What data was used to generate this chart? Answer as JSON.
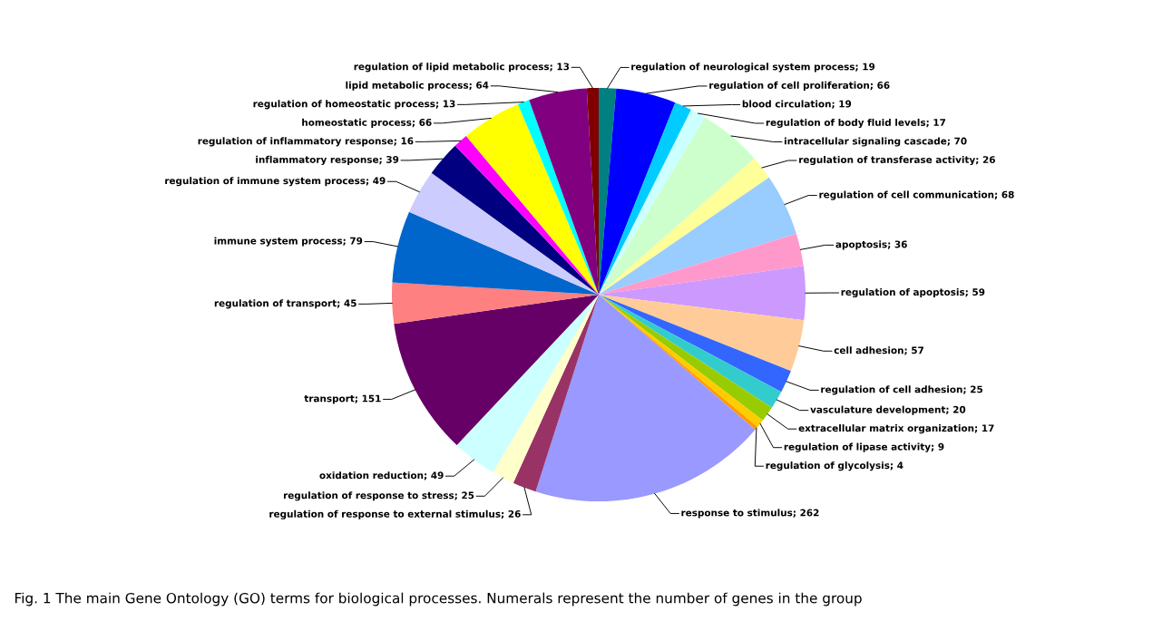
{
  "chart_data": {
    "type": "pie",
    "categories": [
      "regulation of neurological system process; 19",
      "regulation of cell proliferation; 66",
      "blood circulation; 19",
      "regulation of body fluid levels; 17",
      "intracellular signaling cascade; 70",
      "regulation of transferase activity; 26",
      "regulation of cell communication; 68",
      "apoptosis; 36",
      "regulation of apoptosis; 59",
      "cell adhesion; 57",
      "regulation of cell adhesion; 25",
      "vasculature development; 20",
      "extracellular matrix organization; 17",
      "regulation of lipase activity; 9",
      "regulation of glycolysis; 4",
      "response to stimulus; 262",
      "regulation of response to external stimulus; 26",
      "regulation of response to stress; 25",
      "oxidation reduction; 49",
      "transport; 151",
      "regulation of transport; 45",
      "immune system process; 79",
      "regulation of immune system process; 49",
      "inflammatory response; 39",
      "regulation of inflammatory response; 16",
      "homeostatic process; 66",
      "regulation of homeostatic process; 13",
      "lipid metabolic process; 64",
      "regulation of lipid metabolic process; 13"
    ],
    "values": [
      19,
      66,
      19,
      17,
      70,
      26,
      68,
      36,
      59,
      57,
      25,
      20,
      17,
      9,
      4,
      262,
      26,
      25,
      49,
      151,
      45,
      79,
      49,
      39,
      16,
      66,
      13,
      64,
      13
    ],
    "colors": [
      "#008080",
      "#0000ff",
      "#00ccff",
      "#ccffff",
      "#ccffcc",
      "#ffff99",
      "#99ccff",
      "#ff99cc",
      "#cc99ff",
      "#ffcc99",
      "#3366ff",
      "#33cccc",
      "#99cc00",
      "#ffcc00",
      "#ff9900",
      "#9999ff",
      "#993366",
      "#ffffcc",
      "#ccffff",
      "#660066",
      "#ff8080",
      "#0066cc",
      "#ccccff",
      "#000080",
      "#ff00ff",
      "#ffff00",
      "#00ffff",
      "#800080",
      "#800000"
    ],
    "annotations": [
      "Fig. 1 The main Gene Ontology (GO) terms for biological processes. Numerals represent the number of genes in the group"
    ]
  }
}
